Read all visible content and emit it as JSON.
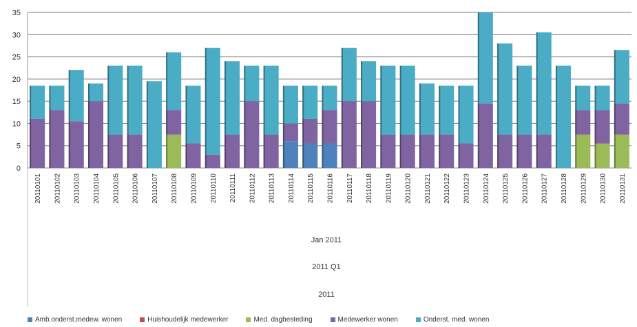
{
  "chart_data": {
    "type": "bar",
    "stacked": true,
    "title": "",
    "xlabel": "",
    "ylabel": "",
    "ylim": [
      0,
      35
    ],
    "yticks": [
      0,
      5,
      10,
      15,
      20,
      25,
      30,
      35
    ],
    "grid": true,
    "legend_position": "bottom",
    "categories": [
      "20110101",
      "20110102",
      "20110103",
      "20110104",
      "20110105",
      "20110106",
      "20110107",
      "20110108",
      "20110109",
      "20110110",
      "20110111",
      "20110112",
      "20110113",
      "20110114",
      "20110115",
      "20110116",
      "20110117",
      "20110118",
      "20110119",
      "20110120",
      "20110121",
      "20110122",
      "20110123",
      "20110124",
      "20110125",
      "20110126",
      "20110127",
      "20110128",
      "20110129",
      "20110130",
      "20110131"
    ],
    "category_groups": [
      "Jan 2011",
      "2011 Q1",
      "2011"
    ],
    "series": [
      {
        "name": "Amb.onderst.medew. wonen",
        "color": "#4f81bd",
        "values": [
          0,
          0,
          0,
          0,
          0,
          0,
          0,
          0,
          0,
          0,
          0,
          0,
          0,
          6,
          5.5,
          5.5,
          0,
          0,
          0,
          0,
          0,
          0,
          0,
          0,
          0,
          0,
          0,
          0,
          0,
          0,
          0
        ]
      },
      {
        "name": "Huishoudelijk medewerker",
        "color": "#c0504d",
        "values": [
          0,
          0,
          0,
          0,
          0,
          0,
          0,
          0,
          0,
          0,
          0,
          0,
          0,
          0,
          0,
          0,
          0,
          0,
          0,
          0,
          0,
          0,
          0,
          0,
          0,
          0,
          0,
          0,
          0,
          0,
          0
        ]
      },
      {
        "name": "Med. dagbesteding",
        "color": "#9bbb59",
        "values": [
          0,
          0,
          0,
          0,
          0,
          0,
          0,
          7.5,
          0,
          0,
          0,
          0,
          0,
          0,
          0,
          0,
          0,
          0,
          0,
          0,
          0,
          0,
          0,
          0,
          0,
          0,
          0,
          0,
          7.5,
          5.5,
          7.5
        ]
      },
      {
        "name": "Medewerker wonen",
        "color": "#8064a2",
        "values": [
          11,
          13,
          10.5,
          15,
          7.5,
          7.5,
          0,
          5.5,
          5.5,
          3,
          7.5,
          15,
          7.5,
          4,
          5.5,
          7.5,
          15,
          15,
          7.5,
          7.5,
          7.5,
          7.5,
          5.5,
          14.5,
          7.5,
          7.5,
          7.5,
          0,
          5.5,
          7.5,
          7
        ]
      },
      {
        "name": "Onderst. med. wonen",
        "color": "#4bacc6",
        "values": [
          7.5,
          5.5,
          11.5,
          4,
          15.5,
          15.5,
          19.5,
          13,
          13,
          24,
          16.5,
          8,
          15.5,
          8.5,
          7.5,
          5.5,
          12,
          9,
          15.5,
          15.5,
          11.5,
          11,
          13,
          20.5,
          20.5,
          15.5,
          23,
          23,
          5.5,
          5.5,
          12
        ]
      }
    ]
  }
}
